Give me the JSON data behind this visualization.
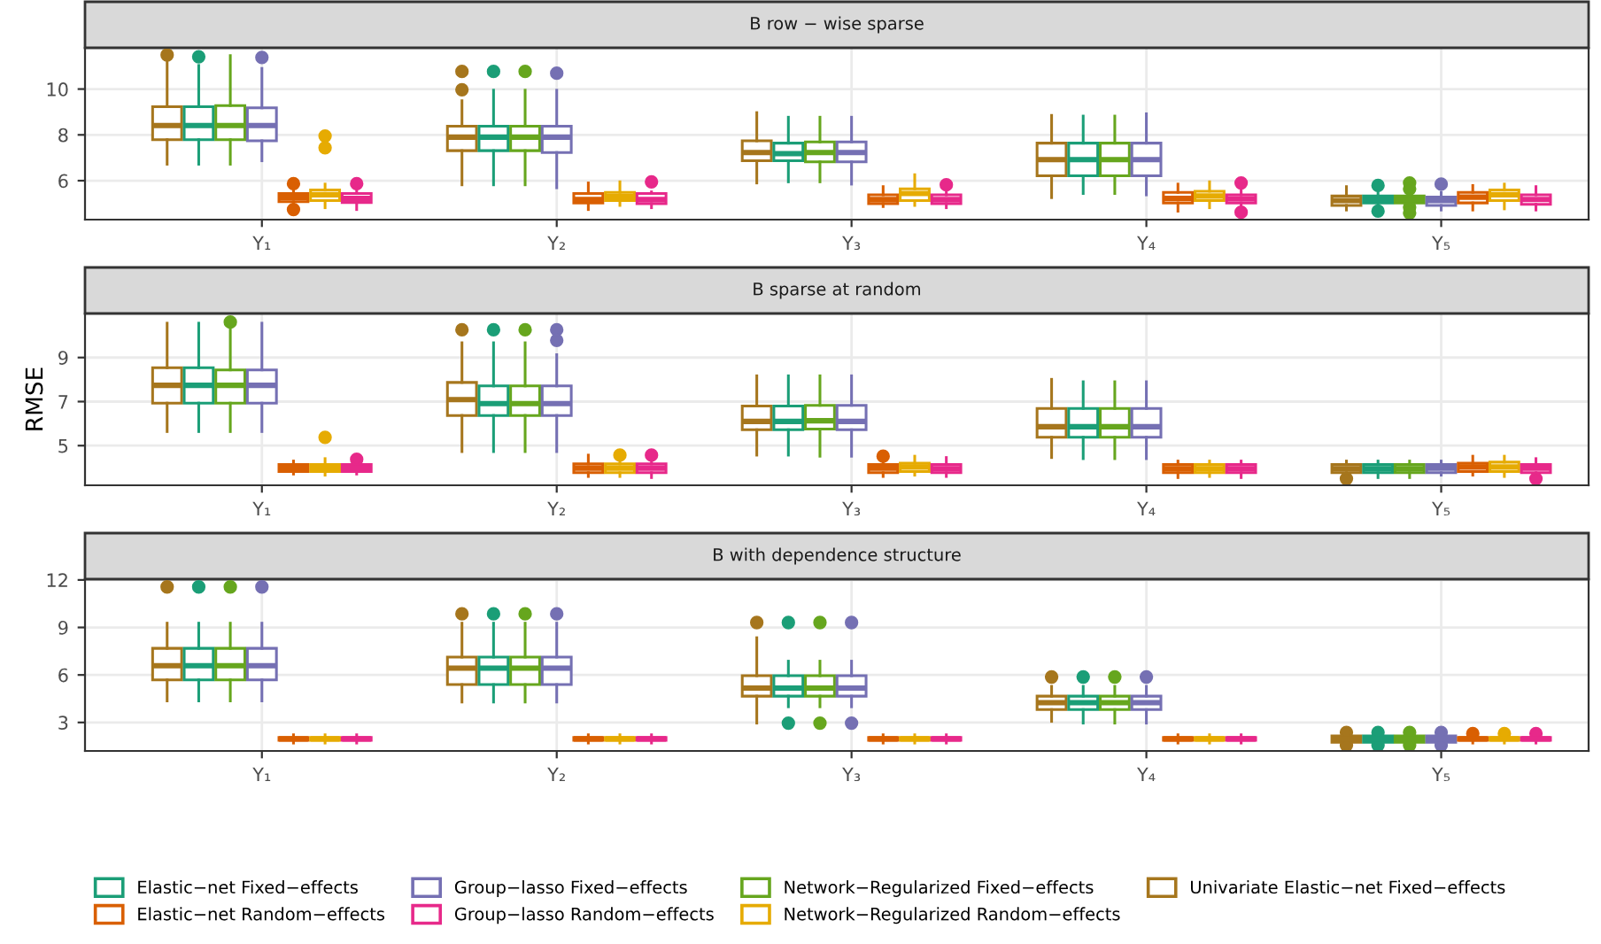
{
  "chart_data": [
    {
      "type": "box",
      "title": "B row − wise sparse",
      "categories": [
        "Y₁",
        "Y₂",
        "Y₃",
        "Y₄",
        "Y₅"
      ],
      "ylim": [
        4.3,
        11.8
      ],
      "yticks": [
        6,
        8,
        10
      ],
      "grid": true,
      "legend": "bottom",
      "series": [
        {
          "name": "Univariate Elastic−net Fixed−effects",
          "color": "#a6761d",
          "boxes": [
            {
              "low": 6.72,
              "q1": 7.79,
              "median": 8.41,
              "q3": 9.23,
              "high": 11.3,
              "outliers": [
                11.49
              ]
            },
            {
              "low": 5.82,
              "q1": 7.31,
              "median": 7.9,
              "q3": 8.38,
              "high": 9.49,
              "outliers": [
                10.77,
                9.97
              ]
            },
            {
              "low": 5.9,
              "q1": 6.87,
              "median": 7.23,
              "q3": 7.74,
              "high": 8.97
            },
            {
              "low": 5.26,
              "q1": 6.21,
              "median": 6.92,
              "q3": 7.64,
              "high": 8.85
            },
            {
              "low": 4.72,
              "q1": 4.92,
              "median": 5.13,
              "q3": 5.33,
              "high": 5.74
            }
          ]
        },
        {
          "name": "Elastic−net Fixed−effects",
          "color": "#1b9e77",
          "boxes": [
            {
              "low": 6.72,
              "q1": 7.79,
              "median": 8.41,
              "q3": 9.23,
              "high": 11.03,
              "outliers": [
                11.41
              ]
            },
            {
              "low": 5.82,
              "q1": 7.31,
              "median": 7.9,
              "q3": 8.38,
              "high": 9.95,
              "outliers": [
                10.77
              ]
            },
            {
              "low": 5.95,
              "q1": 6.87,
              "median": 7.18,
              "q3": 7.64,
              "high": 8.77
            },
            {
              "low": 5.44,
              "q1": 6.21,
              "median": 6.92,
              "q3": 7.64,
              "high": 8.82
            },
            {
              "low": 4.87,
              "q1": 5.03,
              "median": 5.18,
              "q3": 5.33,
              "high": 5.49,
              "outliers": [
                5.79,
                4.67
              ]
            }
          ]
        },
        {
          "name": "Network−Regularized Fixed−effects",
          "color": "#66a61e",
          "boxes": [
            {
              "low": 6.72,
              "q1": 7.79,
              "median": 8.41,
              "q3": 9.28,
              "high": 11.46
            },
            {
              "low": 5.82,
              "q1": 7.31,
              "median": 7.9,
              "q3": 8.38,
              "high": 9.95,
              "outliers": [
                10.77
              ]
            },
            {
              "low": 5.95,
              "q1": 6.82,
              "median": 7.23,
              "q3": 7.69,
              "high": 8.77
            },
            {
              "low": 5.44,
              "q1": 6.21,
              "median": 6.92,
              "q3": 7.64,
              "high": 8.82
            },
            {
              "low": 4.95,
              "q1": 5.03,
              "median": 5.18,
              "q3": 5.33,
              "high": 5.44,
              "outliers": [
                5.9,
                5.64,
                4.84,
                4.59
              ]
            }
          ]
        },
        {
          "name": "Group−lasso Fixed−effects",
          "color": "#7570b3",
          "boxes": [
            {
              "low": 6.87,
              "q1": 7.74,
              "median": 8.41,
              "q3": 9.18,
              "high": 10.9,
              "outliers": [
                11.38
              ]
            },
            {
              "low": 5.69,
              "q1": 7.23,
              "median": 7.9,
              "q3": 8.38,
              "high": 9.95,
              "outliers": [
                10.69
              ]
            },
            {
              "low": 5.85,
              "q1": 6.82,
              "median": 7.23,
              "q3": 7.69,
              "high": 8.77
            },
            {
              "low": 5.38,
              "q1": 6.21,
              "median": 6.92,
              "q3": 7.64,
              "high": 8.92
            },
            {
              "low": 4.72,
              "q1": 4.92,
              "median": 5.13,
              "q3": 5.28,
              "high": 5.49,
              "outliers": [
                5.85
              ]
            }
          ]
        },
        {
          "name": "Elastic−net Random−effects",
          "color": "#d95f02",
          "boxes": [
            {
              "low": 4.95,
              "q1": 5.08,
              "median": 5.26,
              "q3": 5.44,
              "high": 5.7,
              "outliers": [
                5.87,
                4.74
              ]
            },
            {
              "low": 4.74,
              "q1": 5.03,
              "median": 5.18,
              "q3": 5.44,
              "high": 5.9
            },
            {
              "low": 4.87,
              "q1": 5.0,
              "median": 5.18,
              "q3": 5.38,
              "high": 5.74
            },
            {
              "low": 4.67,
              "q1": 5.03,
              "median": 5.23,
              "q3": 5.49,
              "high": 5.85
            },
            {
              "low": 4.72,
              "q1": 5.03,
              "median": 5.28,
              "q3": 5.49,
              "high": 5.79
            }
          ]
        },
        {
          "name": "Network−Regularized Random−effects",
          "color": "#e6ab02",
          "boxes": [
            {
              "low": 4.82,
              "q1": 5.13,
              "median": 5.38,
              "q3": 5.59,
              "high": 5.85,
              "outliers": [
                7.95,
                7.44
              ]
            },
            {
              "low": 4.92,
              "q1": 5.13,
              "median": 5.31,
              "q3": 5.49,
              "high": 5.95
            },
            {
              "low": 4.92,
              "q1": 5.13,
              "median": 5.44,
              "q3": 5.64,
              "high": 6.26
            },
            {
              "low": 4.82,
              "q1": 5.13,
              "median": 5.33,
              "q3": 5.54,
              "high": 5.95
            },
            {
              "low": 4.77,
              "q1": 5.13,
              "median": 5.38,
              "q3": 5.59,
              "high": 5.85
            }
          ]
        },
        {
          "name": "Group−lasso Random−effects",
          "color": "#e7298a",
          "boxes": [
            {
              "low": 4.74,
              "q1": 5.05,
              "median": 5.23,
              "q3": 5.44,
              "high": 5.7,
              "outliers": [
                5.87
              ]
            },
            {
              "low": 4.82,
              "q1": 5.0,
              "median": 5.18,
              "q3": 5.44,
              "high": 5.51,
              "outliers": [
                5.95
              ]
            },
            {
              "low": 4.82,
              "q1": 5.0,
              "median": 5.18,
              "q3": 5.38,
              "high": 5.59,
              "outliers": [
                5.82
              ]
            },
            {
              "low": 4.82,
              "q1": 5.03,
              "median": 5.21,
              "q3": 5.38,
              "high": 5.59,
              "outliers": [
                5.9,
                4.62
              ]
            },
            {
              "low": 4.72,
              "q1": 4.97,
              "median": 5.18,
              "q3": 5.38,
              "high": 5.74
            }
          ]
        }
      ]
    },
    {
      "type": "box",
      "title": "B sparse at random",
      "ylabel": "RMSE",
      "categories": [
        "Y₁",
        "Y₂",
        "Y₃",
        "Y₄",
        "Y₅"
      ],
      "ylim": [
        3.2,
        11.0
      ],
      "yticks": [
        5,
        7,
        9
      ],
      "grid": true,
      "series": [
        {
          "color": "#a6761d",
          "boxes": [
            {
              "low": 5.64,
              "q1": 6.93,
              "median": 7.74,
              "q3": 8.54,
              "high": 10.56
            },
            {
              "low": 4.73,
              "q1": 6.37,
              "median": 7.09,
              "q3": 7.87,
              "high": 9.67,
              "outliers": [
                10.26
              ]
            },
            {
              "low": 4.57,
              "q1": 5.72,
              "median": 6.1,
              "q3": 6.8,
              "high": 8.17
            },
            {
              "low": 4.46,
              "q1": 5.38,
              "median": 5.86,
              "q3": 6.69,
              "high": 8.01
            },
            {
              "low": 3.63,
              "q1": 3.77,
              "median": 3.95,
              "q3": 4.14,
              "high": 4.3,
              "outliers": [
                3.5
              ]
            }
          ]
        },
        {
          "color": "#1b9e77",
          "boxes": [
            {
              "low": 5.64,
              "q1": 6.93,
              "median": 7.74,
              "q3": 8.54,
              "high": 10.56
            },
            {
              "low": 4.73,
              "q1": 6.37,
              "median": 6.91,
              "q3": 7.71,
              "high": 9.67,
              "outliers": [
                10.26
              ]
            },
            {
              "low": 4.57,
              "q1": 5.72,
              "median": 6.1,
              "q3": 6.8,
              "high": 8.17
            },
            {
              "low": 4.41,
              "q1": 5.38,
              "median": 5.86,
              "q3": 6.69,
              "high": 7.9
            },
            {
              "low": 3.55,
              "q1": 3.77,
              "median": 3.95,
              "q3": 4.14,
              "high": 4.3
            }
          ]
        },
        {
          "color": "#66a61e",
          "boxes": [
            {
              "low": 5.64,
              "q1": 6.93,
              "median": 7.74,
              "q3": 8.44,
              "high": 10.4,
              "outliers": [
                10.61
              ]
            },
            {
              "low": 4.73,
              "q1": 6.37,
              "median": 6.91,
              "q3": 7.71,
              "high": 9.67,
              "outliers": [
                10.26
              ]
            },
            {
              "low": 4.52,
              "q1": 5.75,
              "median": 6.13,
              "q3": 6.83,
              "high": 8.17
            },
            {
              "low": 4.41,
              "q1": 5.38,
              "median": 5.86,
              "q3": 6.69,
              "high": 7.9
            },
            {
              "low": 3.55,
              "q1": 3.77,
              "median": 3.95,
              "q3": 4.14,
              "high": 4.3
            }
          ]
        },
        {
          "color": "#7570b3",
          "boxes": [
            {
              "low": 5.64,
              "q1": 6.93,
              "median": 7.74,
              "q3": 8.44,
              "high": 10.56
            },
            {
              "low": 4.73,
              "q1": 6.37,
              "median": 6.91,
              "q3": 7.71,
              "high": 9.13,
              "outliers": [
                10.26,
                9.78
              ]
            },
            {
              "low": 4.52,
              "q1": 5.72,
              "median": 6.1,
              "q3": 6.83,
              "high": 8.17
            },
            {
              "low": 4.41,
              "q1": 5.38,
              "median": 5.86,
              "q3": 6.69,
              "high": 7.9
            },
            {
              "low": 3.66,
              "q1": 3.77,
              "median": 3.98,
              "q3": 4.14,
              "high": 4.3
            }
          ]
        },
        {
          "color": "#d95f02",
          "boxes": [
            {
              "low": 3.71,
              "q1": 3.82,
              "median": 3.98,
              "q3": 4.14,
              "high": 4.3
            },
            {
              "low": 3.6,
              "q1": 3.77,
              "median": 3.98,
              "q3": 4.17,
              "high": 4.57
            },
            {
              "low": 3.6,
              "q1": 3.77,
              "median": 3.98,
              "q3": 4.14,
              "high": 4.3,
              "outliers": [
                4.52
              ]
            },
            {
              "low": 3.55,
              "q1": 3.77,
              "median": 3.95,
              "q3": 4.14,
              "high": 4.3
            },
            {
              "low": 3.66,
              "q1": 3.82,
              "median": 4.03,
              "q3": 4.2,
              "high": 4.52
            }
          ]
        },
        {
          "color": "#e6ab02",
          "boxes": [
            {
              "low": 3.66,
              "q1": 3.82,
              "median": 3.98,
              "q3": 4.14,
              "high": 4.41,
              "outliers": [
                5.38
              ]
            },
            {
              "low": 3.6,
              "q1": 3.77,
              "median": 3.98,
              "q3": 4.17,
              "high": 4.3,
              "outliers": [
                4.57
              ]
            },
            {
              "low": 3.66,
              "q1": 3.82,
              "median": 4.03,
              "q3": 4.2,
              "high": 4.52
            },
            {
              "low": 3.6,
              "q1": 3.77,
              "median": 3.95,
              "q3": 4.14,
              "high": 4.3
            },
            {
              "low": 3.6,
              "q1": 3.82,
              "median": 4.03,
              "q3": 4.25,
              "high": 4.52
            }
          ]
        },
        {
          "color": "#e7298a",
          "boxes": [
            {
              "low": 3.71,
              "q1": 3.82,
              "median": 3.98,
              "q3": 4.14,
              "high": 4.2,
              "outliers": [
                4.38
              ]
            },
            {
              "low": 3.55,
              "q1": 3.77,
              "median": 3.98,
              "q3": 4.17,
              "high": 4.25,
              "outliers": [
                4.57
              ]
            },
            {
              "low": 3.6,
              "q1": 3.77,
              "median": 3.95,
              "q3": 4.14,
              "high": 4.46
            },
            {
              "low": 3.55,
              "q1": 3.77,
              "median": 3.95,
              "q3": 4.14,
              "high": 4.3
            },
            {
              "low": 3.71,
              "q1": 3.77,
              "median": 3.98,
              "q3": 4.14,
              "high": 4.41,
              "outliers": [
                3.5
              ]
            }
          ]
        }
      ]
    },
    {
      "type": "box",
      "title": "B with dependence structure",
      "categories": [
        "Y₁",
        "Y₂",
        "Y₃",
        "Y₄",
        "Y₅"
      ],
      "ylim": [
        1.2,
        12.05
      ],
      "yticks": [
        3,
        6,
        9,
        12
      ],
      "grid": true,
      "series": [
        {
          "color": "#a6761d",
          "boxes": [
            {
              "low": 4.36,
              "q1": 5.69,
              "median": 6.58,
              "q3": 7.68,
              "high": 9.27,
              "outliers": [
                11.56
              ]
            },
            {
              "low": 4.29,
              "q1": 5.39,
              "median": 6.43,
              "q3": 7.13,
              "high": 9.27,
              "outliers": [
                9.86
              ]
            },
            {
              "low": 2.96,
              "q1": 4.66,
              "median": 5.17,
              "q3": 5.95,
              "high": 8.35,
              "outliers": [
                9.31
              ]
            },
            {
              "low": 3.07,
              "q1": 3.81,
              "median": 4.25,
              "q3": 4.66,
              "high": 5.28,
              "outliers": [
                5.87
              ]
            },
            {
              "low": 1.62,
              "q1": 1.75,
              "median": 1.96,
              "q3": 2.15,
              "high": 2.3,
              "outliers": [
                2.37,
                1.56
              ]
            }
          ]
        },
        {
          "color": "#1b9e77",
          "boxes": [
            {
              "low": 4.36,
              "q1": 5.69,
              "median": 6.58,
              "q3": 7.68,
              "high": 9.27,
              "outliers": [
                11.56
              ]
            },
            {
              "low": 4.29,
              "q1": 5.39,
              "median": 6.43,
              "q3": 7.13,
              "high": 9.27,
              "outliers": [
                9.86
              ]
            },
            {
              "low": 3.99,
              "q1": 4.66,
              "median": 5.17,
              "q3": 5.95,
              "high": 6.87,
              "outliers": [
                9.31,
                2.96
              ]
            },
            {
              "low": 2.96,
              "q1": 3.81,
              "median": 4.25,
              "q3": 4.66,
              "high": 5.28,
              "outliers": [
                5.87
              ]
            },
            {
              "low": 1.62,
              "q1": 1.75,
              "median": 1.96,
              "q3": 2.15,
              "high": 2.3,
              "outliers": [
                2.37,
                1.56
              ]
            }
          ]
        },
        {
          "color": "#66a61e",
          "boxes": [
            {
              "low": 4.36,
              "q1": 5.69,
              "median": 6.58,
              "q3": 7.68,
              "high": 9.27,
              "outliers": [
                11.56
              ]
            },
            {
              "low": 4.29,
              "q1": 5.39,
              "median": 6.43,
              "q3": 7.13,
              "high": 9.27,
              "outliers": [
                9.86
              ]
            },
            {
              "low": 3.99,
              "q1": 4.66,
              "median": 5.17,
              "q3": 5.95,
              "high": 6.87,
              "outliers": [
                9.31,
                2.96
              ]
            },
            {
              "low": 2.96,
              "q1": 3.81,
              "median": 4.25,
              "q3": 4.66,
              "high": 5.28,
              "outliers": [
                5.87
              ]
            },
            {
              "low": 1.62,
              "q1": 1.75,
              "median": 1.96,
              "q3": 2.15,
              "high": 2.3,
              "outliers": [
                2.37,
                1.56
              ]
            }
          ]
        },
        {
          "color": "#7570b3",
          "boxes": [
            {
              "low": 4.36,
              "q1": 5.69,
              "median": 6.58,
              "q3": 7.68,
              "high": 9.27,
              "outliers": [
                11.56
              ]
            },
            {
              "low": 4.29,
              "q1": 5.39,
              "median": 6.43,
              "q3": 7.13,
              "high": 9.27,
              "outliers": [
                9.86
              ]
            },
            {
              "low": 3.99,
              "q1": 4.66,
              "median": 5.17,
              "q3": 5.95,
              "high": 6.87,
              "outliers": [
                9.31,
                2.96
              ]
            },
            {
              "low": 2.96,
              "q1": 3.81,
              "median": 4.25,
              "q3": 4.66,
              "high": 5.28,
              "outliers": [
                5.87
              ]
            },
            {
              "low": 1.62,
              "q1": 1.75,
              "median": 1.96,
              "q3": 2.15,
              "high": 2.3,
              "outliers": [
                2.37,
                1.56
              ]
            }
          ]
        },
        {
          "color": "#d95f02",
          "boxes": [
            {
              "low": 1.7,
              "q1": 1.87,
              "median": 1.96,
              "q3": 2.05,
              "high": 2.22
            },
            {
              "low": 1.7,
              "q1": 1.87,
              "median": 1.96,
              "q3": 2.05,
              "high": 2.22
            },
            {
              "low": 1.7,
              "q1": 1.87,
              "median": 1.96,
              "q3": 2.05,
              "high": 2.22
            },
            {
              "low": 1.7,
              "q1": 1.87,
              "median": 1.96,
              "q3": 2.05,
              "high": 2.22
            },
            {
              "low": 1.7,
              "q1": 1.87,
              "median": 1.96,
              "q3": 2.05,
              "high": 2.22,
              "outliers": [
                2.3
              ]
            }
          ]
        },
        {
          "color": "#e6ab02",
          "boxes": [
            {
              "low": 1.7,
              "q1": 1.87,
              "median": 1.96,
              "q3": 2.05,
              "high": 2.22
            },
            {
              "low": 1.7,
              "q1": 1.87,
              "median": 1.96,
              "q3": 2.05,
              "high": 2.22
            },
            {
              "low": 1.7,
              "q1": 1.87,
              "median": 1.96,
              "q3": 2.05,
              "high": 2.22
            },
            {
              "low": 1.7,
              "q1": 1.87,
              "median": 1.96,
              "q3": 2.05,
              "high": 2.22
            },
            {
              "low": 1.7,
              "q1": 1.87,
              "median": 1.96,
              "q3": 2.05,
              "high": 2.22,
              "outliers": [
                2.3
              ]
            }
          ]
        },
        {
          "color": "#e7298a",
          "boxes": [
            {
              "low": 1.7,
              "q1": 1.87,
              "median": 1.96,
              "q3": 2.05,
              "high": 2.22
            },
            {
              "low": 1.7,
              "q1": 1.87,
              "median": 1.96,
              "q3": 2.05,
              "high": 2.22
            },
            {
              "low": 1.7,
              "q1": 1.87,
              "median": 1.96,
              "q3": 2.05,
              "high": 2.22
            },
            {
              "low": 1.7,
              "q1": 1.87,
              "median": 1.96,
              "q3": 2.05,
              "high": 2.22
            },
            {
              "low": 1.7,
              "q1": 1.87,
              "median": 1.96,
              "q3": 2.05,
              "high": 2.22,
              "outliers": [
                2.3
              ]
            }
          ]
        }
      ]
    }
  ]
}
